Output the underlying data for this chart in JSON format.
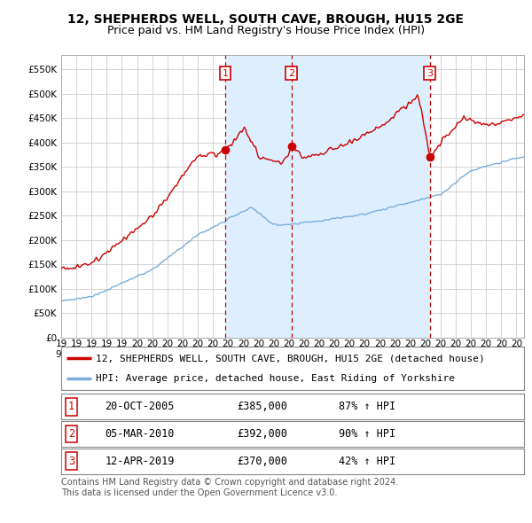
{
  "title": "12, SHEPHERDS WELL, SOUTH CAVE, BROUGH, HU15 2GE",
  "subtitle": "Price paid vs. HM Land Registry's House Price Index (HPI)",
  "yticks": [
    0,
    50000,
    100000,
    150000,
    200000,
    250000,
    300000,
    350000,
    400000,
    450000,
    500000,
    550000
  ],
  "ylim": [
    0,
    580000
  ],
  "xlim_start": 1995.0,
  "xlim_end": 2025.5,
  "background_color": "#ffffff",
  "grid_color": "#cccccc",
  "shade_color": "#ddeeff",
  "sale_dates": [
    2005.8,
    2010.17,
    2019.28
  ],
  "sale_prices": [
    385000,
    392000,
    370000
  ],
  "sale_labels": [
    "1",
    "2",
    "3"
  ],
  "sale_label_color": "#cc0000",
  "hpi_line_color": "#7aadda",
  "price_line_color": "#cc0000",
  "legend_entries": [
    "12, SHEPHERDS WELL, SOUTH CAVE, BROUGH, HU15 2GE (detached house)",
    "HPI: Average price, detached house, East Riding of Yorkshire"
  ],
  "table_rows": [
    [
      "1",
      "20-OCT-2005",
      "£385,000",
      "87% ↑ HPI"
    ],
    [
      "2",
      "05-MAR-2010",
      "£392,000",
      "90% ↑ HPI"
    ],
    [
      "3",
      "12-APR-2019",
      "£370,000",
      "42% ↑ HPI"
    ]
  ],
  "footnote": "Contains HM Land Registry data © Crown copyright and database right 2024.\nThis data is licensed under the Open Government Licence v3.0.",
  "title_fontsize": 10,
  "subtitle_fontsize": 9,
  "tick_fontsize": 7.5,
  "legend_fontsize": 8,
  "table_fontsize": 8.5,
  "footnote_fontsize": 7
}
